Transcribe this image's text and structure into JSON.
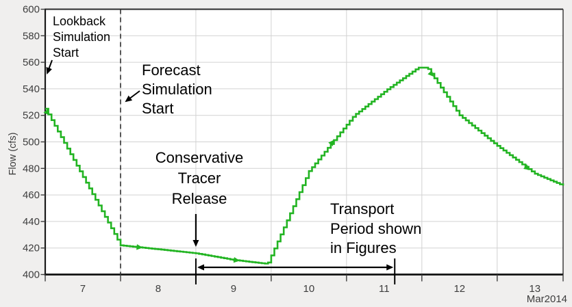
{
  "figure": {
    "ylabel": "Flow (cfs)",
    "date_label": "Mar2014",
    "background": "#f0efee",
    "plot_background": "#ffffff",
    "grid_color": "#d2d2d2",
    "axis_color": "#1a1a1a",
    "tick_label_color": "#3d3d3d"
  },
  "chart_data": {
    "type": "line",
    "line_style": "stair-step",
    "title": "",
    "xlabel": "Mar2014",
    "ylabel": "Flow (cfs)",
    "xlim_days": [
      6.5,
      13.375
    ],
    "ylim": [
      400,
      600
    ],
    "y_ticks": [
      400,
      420,
      440,
      460,
      480,
      500,
      520,
      540,
      560,
      580,
      600
    ],
    "x_tick_days": [
      6.5,
      7.5,
      8.5,
      9.5,
      10.5,
      11.5,
      12.5
    ],
    "x_day_labels": [
      7,
      8,
      9,
      10,
      11,
      12,
      13
    ],
    "grid": true,
    "step_hours": 1,
    "series": [
      {
        "name": "Flow",
        "color": "#22b422",
        "breakpoints_day_flow": [
          [
            6.5,
            525
          ],
          [
            7.5,
            422
          ],
          [
            8.0,
            419
          ],
          [
            8.5,
            416
          ],
          [
            9.0,
            411
          ],
          [
            9.45,
            408
          ],
          [
            10.0,
            478
          ],
          [
            10.6,
            520
          ],
          [
            11.05,
            540
          ],
          [
            11.45,
            556
          ],
          [
            11.57,
            556
          ],
          [
            12.0,
            520
          ],
          [
            12.5,
            497
          ],
          [
            13.0,
            476
          ],
          [
            13.375,
            467
          ]
        ],
        "marker_days": [
          6.53,
          7.75,
          9.04,
          10.31,
          11.63,
          12.9
        ]
      }
    ]
  },
  "annotations": {
    "lookback": {
      "lines": [
        "Lookback",
        "Simulation",
        "Start"
      ]
    },
    "forecast": {
      "lines": [
        "Forecast",
        "Simulation",
        "Start"
      ]
    },
    "tracer": {
      "lines": [
        "Conservative",
        "Tracer",
        "Release"
      ]
    },
    "transport": {
      "lines": [
        "Transport",
        "Period shown",
        "in Figures"
      ]
    },
    "forecast_line_day": 7.5,
    "tracer_release_day": 8.5,
    "transport_span_days": [
      8.5,
      11.14
    ],
    "arrow_color": "#000000",
    "dashed_line_color": "#2e2e2e"
  }
}
